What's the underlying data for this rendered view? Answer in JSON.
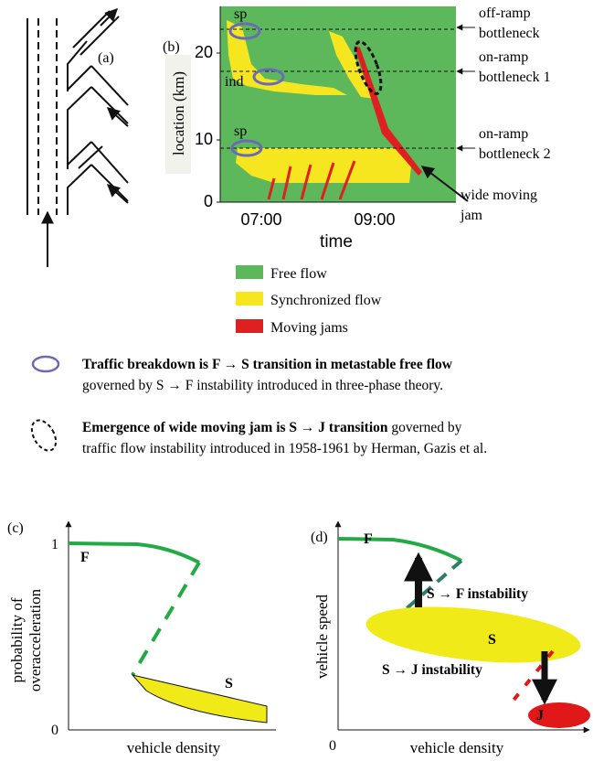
{
  "colors": {
    "free_flow": "#5cb85a",
    "synchronized": "#f5e620",
    "jam": "#e02020",
    "breakdown_ellipse": "#6a6ab8",
    "curve_green": "#22aa44",
    "dashed_teal": "#2e7d6b",
    "s_region": "#f0ea18",
    "j_region": "#e01818"
  },
  "panel_a": {
    "label": "(a)"
  },
  "panel_b": {
    "label": "(b)",
    "ylabel": "location (km)",
    "xlabel": "time",
    "yticks": [
      "0",
      "10",
      "20"
    ],
    "xticks": [
      "07:00",
      "09:00"
    ],
    "markers": {
      "sp_top": "sp",
      "ind": "ind",
      "sp_bottom": "sp"
    },
    "bottlenecks": [
      {
        "line1": "off-ramp",
        "line2": "bottleneck"
      },
      {
        "line1": "on-ramp",
        "line2": "bottleneck 1"
      },
      {
        "line1": "on-ramp",
        "line2": "bottleneck 2"
      }
    ],
    "jam_label": {
      "line1": "wide moving",
      "line2": "jam"
    }
  },
  "legend": [
    {
      "label": "Free flow",
      "color": "#5cb85a"
    },
    {
      "label": "Synchronized flow",
      "color": "#f5e620"
    },
    {
      "label": "Moving jams",
      "color": "#e02020"
    }
  ],
  "notes": {
    "breakdown": {
      "line1_bold": "Traffic breakdown is F → S transition in metastable free flow",
      "line2": "governed by  S → F  instability introduced in three-phase theory."
    },
    "emergence": {
      "line1_bold": "Emergence of wide moving jam is S → J transition",
      "line1_rest": " governed by",
      "line2": "traffic flow instability introduced in 1958-1961 by Herman, Gazis et al."
    }
  },
  "panel_c": {
    "label": "(c)",
    "ylabel_1": "probability of",
    "ylabel_2": "overacceleration",
    "xlabel": "vehicle density",
    "ytick_top": "1",
    "ytick_bottom": "0",
    "curve_F": "F",
    "region_S": "S"
  },
  "panel_d": {
    "label": "(d)",
    "ylabel": "vehicle speed",
    "xlabel": "vehicle density",
    "xtick_zero": "0",
    "curve_F": "F",
    "region_S": "S",
    "region_J": "J",
    "sf_instability": "S → F instability",
    "sj_instability": "S → J instability"
  }
}
